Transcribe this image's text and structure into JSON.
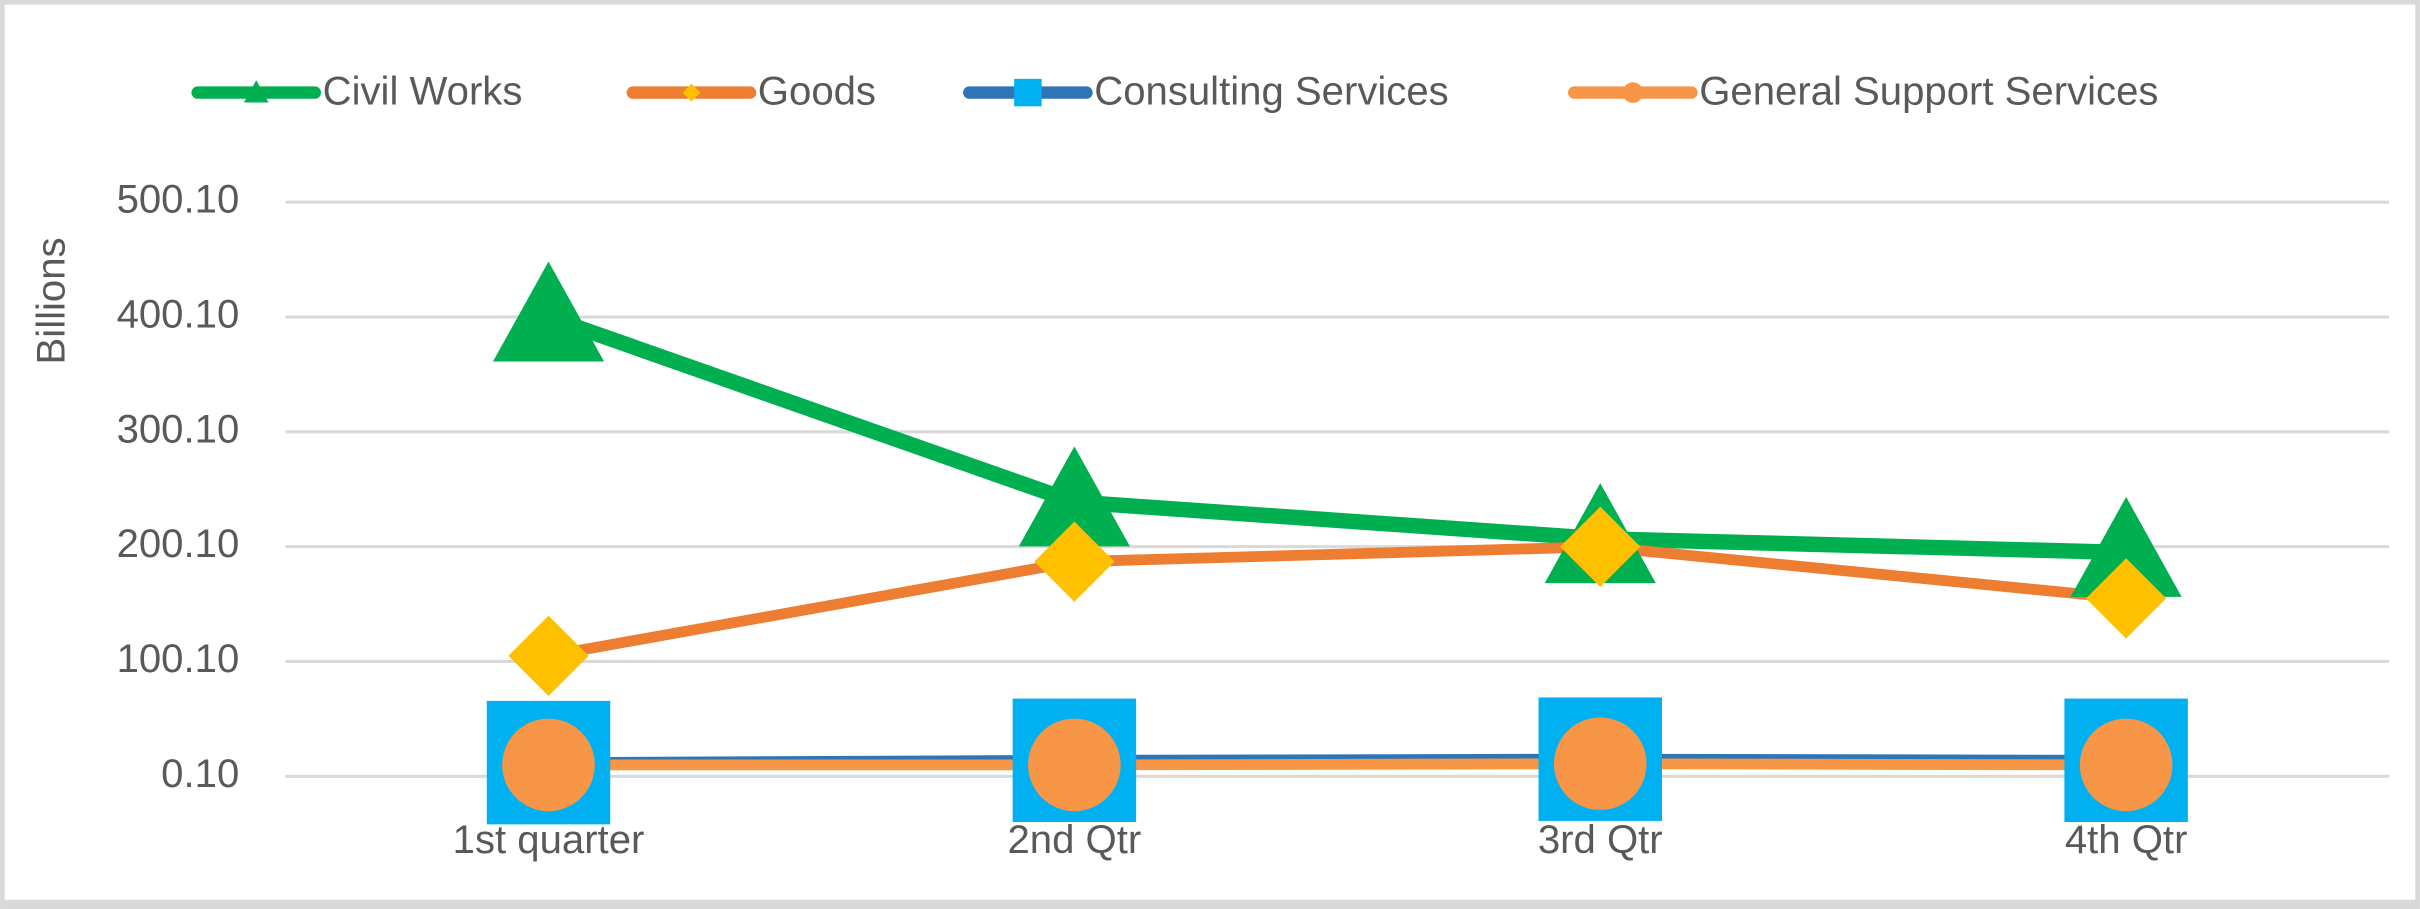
{
  "chart_data": {
    "type": "line",
    "y_label": "Billions",
    "categories": [
      "1st quarter",
      "2nd Qtr",
      "3rd Qtr",
      "4th Qtr"
    ],
    "series": [
      {
        "name": "Civil Works",
        "color": "#00b050",
        "marker": "triangle",
        "marker_color": "#00b050",
        "values": [
          400,
          239,
          207,
          195
        ]
      },
      {
        "name": "Goods",
        "color": "#ed7d31",
        "marker": "diamond",
        "marker_color": "#ffc000",
        "values": [
          105,
          187,
          200,
          155
        ]
      },
      {
        "name": "Consulting Services",
        "color": "#2e75b6",
        "marker": "square",
        "marker_color": "#00b0f0",
        "values": [
          12,
          14,
          15,
          14
        ]
      },
      {
        "name": "General Support Services",
        "color": "#f79646",
        "marker": "circle",
        "marker_color": "#f79646",
        "values": [
          10,
          10,
          11,
          10
        ]
      }
    ],
    "ylim": [
      0.1,
      500.1
    ],
    "yticks": [
      {
        "value": 0.1,
        "label": "0.10"
      },
      {
        "value": 100.1,
        "label": "100.10"
      },
      {
        "value": 200.1,
        "label": "200.10"
      },
      {
        "value": 300.1,
        "label": "300.10"
      },
      {
        "value": 400.1,
        "label": "400.10"
      },
      {
        "value": 500.1,
        "label": "500.10"
      }
    ],
    "grid": true,
    "legend": "top"
  }
}
